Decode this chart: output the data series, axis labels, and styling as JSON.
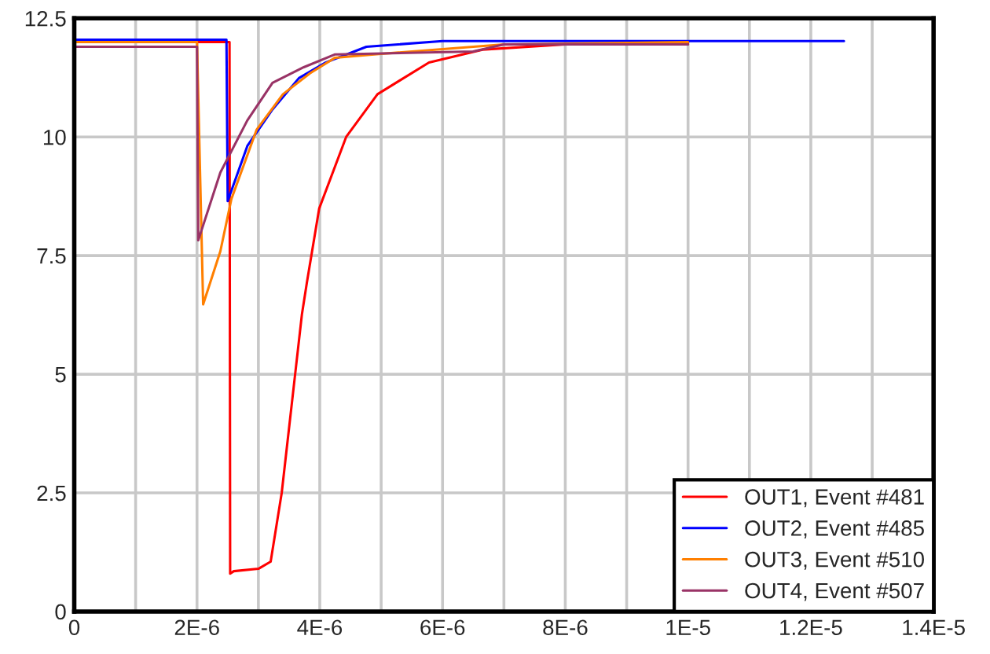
{
  "chart_data": {
    "type": "line",
    "xlim": [
      0,
      1.4e-05
    ],
    "ylim": [
      0,
      12.5
    ],
    "xticks": [
      0,
      {
        "value": 1e-06,
        "label": null
      },
      {
        "value": 2e-06,
        "label": "2E-6"
      },
      {
        "value": 3e-06,
        "label": null
      },
      {
        "value": 4e-06,
        "label": "4E-6"
      },
      {
        "value": 5e-06,
        "label": null
      },
      {
        "value": 6e-06,
        "label": "6E-6"
      },
      {
        "value": 7e-06,
        "label": null
      },
      {
        "value": 8e-06,
        "label": "8E-6"
      },
      {
        "value": 9e-06,
        "label": null
      },
      {
        "value": 1e-05,
        "label": "1E-5"
      },
      {
        "value": 1.1e-05,
        "label": null
      },
      {
        "value": 1.2e-05,
        "label": "1.2E-5"
      },
      {
        "value": 1.3e-05,
        "label": null
      },
      {
        "value": 1.4e-05,
        "label": "1.4E-5"
      }
    ],
    "yticks": [
      0,
      2.5,
      5,
      7.5,
      10,
      12.5
    ],
    "grid": true,
    "legend": "bottom right",
    "series": [
      {
        "name": "OUT1, Event #481",
        "color": "#ff0000",
        "x": [
          0,
          2.53e-06,
          2.54e-06,
          2.6e-06,
          3e-06,
          3.2e-06,
          3.38e-06,
          3.71e-06,
          3.79e-06,
          3.99e-06,
          4.43e-06,
          4.94e-06,
          5.78e-06,
          6.65e-06,
          8e-06,
          1e-05
        ],
        "values": [
          12.0,
          12.0,
          0.8,
          0.85,
          0.9,
          1.05,
          2.5,
          6.27,
          6.93,
          8.49,
          10.0,
          10.9,
          11.57,
          11.84,
          11.95,
          11.98
        ]
      },
      {
        "name": "OUT2, Event #485",
        "color": "#0000ff",
        "x": [
          0,
          2.48e-06,
          2.5e-06,
          2.82e-06,
          3.23e-06,
          3.66e-06,
          4.1e-06,
          4.76e-06,
          6e-06,
          1.254e-05
        ],
        "values": [
          12.05,
          12.05,
          8.65,
          9.81,
          10.58,
          11.24,
          11.57,
          11.9,
          12.02,
          12.02
        ]
      },
      {
        "name": "OUT3, Event #510",
        "color": "#ff7f00",
        "x": [
          0,
          2e-06,
          2.1e-06,
          2.38e-06,
          2.56e-06,
          2.97e-06,
          3.4e-06,
          3.84e-06,
          4.25e-06,
          5e-06,
          7e-06,
          1e-05
        ],
        "values": [
          12.0,
          12.0,
          6.47,
          7.59,
          8.69,
          10.15,
          10.9,
          11.34,
          11.67,
          11.75,
          11.95,
          12.0
        ]
      },
      {
        "name": "OUT4, Event #507",
        "color": "#993366",
        "x": [
          0,
          2e-06,
          2.02e-06,
          2.38e-06,
          2.82e-06,
          3.23e-06,
          3.74e-06,
          4.25e-06,
          6.5e-06,
          7e-06,
          1e-05
        ],
        "values": [
          11.9,
          11.9,
          7.82,
          9.25,
          10.35,
          11.14,
          11.47,
          11.74,
          11.8,
          11.95,
          11.95
        ]
      }
    ]
  }
}
